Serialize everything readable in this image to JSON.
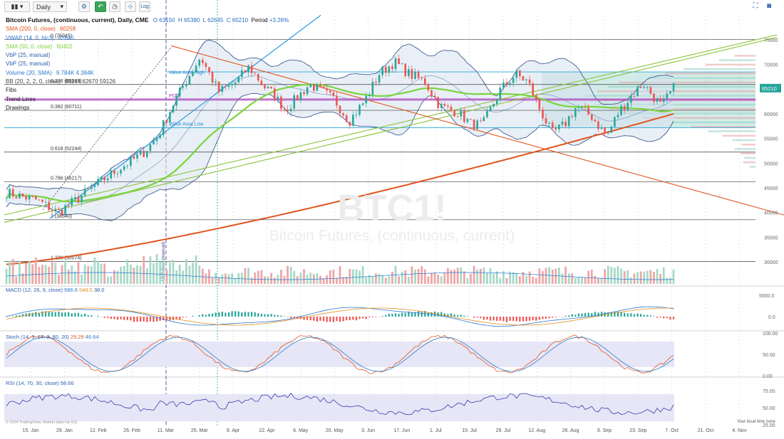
{
  "toolbar": {
    "chart_type_icon": "candles-icon",
    "interval": "Daily",
    "settings_icon": "gear-icon",
    "replay_icon": "back-arrow-icon",
    "clock_icon": "clock-icon",
    "draw_icon": "crosshair-icon",
    "log_label": "Log",
    "fullscreen_icon": "fullscreen-icon",
    "snapshot_icon": "camera-icon"
  },
  "header": {
    "title": "Bitcoin Futures, (continuous, current), Daily, CME",
    "o_label": "O",
    "o": "63150",
    "h_label": "H",
    "h": "65380",
    "l_label": "L",
    "l": "62645",
    "c_label": "C",
    "c": "65210",
    "period_label": "Period",
    "period": "+3.26%"
  },
  "legend": [
    {
      "text": "SMA (200, 0, close)",
      "value": "60258",
      "color": "#e0541d"
    },
    {
      "text": "VWAP (14, 0, hlc3)",
      "value": "62645",
      "color": "#2b7ad0"
    },
    {
      "text": "SMA (50, 0, close)",
      "value": "60402",
      "color": "#7ad43b"
    },
    {
      "text": "VbP (25, manual)",
      "value": "",
      "color": "#2b5fb0"
    },
    {
      "text": "VbP (25, manual)",
      "value": "",
      "color": "#2b5fb0"
    },
    {
      "text": "Volume (20, SMA)",
      "value": "9.784K  4.384K",
      "color": "#2b7ad0"
    },
    {
      "text": "BB (20, 2, 2, 0, close)",
      "value": "66214  62670  59126",
      "color": "#444"
    },
    {
      "text": "Fibs",
      "value": "",
      "color": "#222"
    },
    {
      "text": "Trend Lines",
      "value": "",
      "color": "#222"
    },
    {
      "text": "Drawings",
      "value": "",
      "color": "#222"
    }
  ],
  "watermark": {
    "symbol": "BTC1!",
    "name": "Bitcoin Futures, (continuous, current)"
  },
  "price_axis": [
    "75000",
    "70000",
    "65000",
    "60000",
    "55000",
    "50000",
    "45000",
    "40000",
    "35000",
    "30000"
  ],
  "last_price": "65210",
  "fib_labels": [
    {
      "label": "0 (75045)",
      "value": 75045
    },
    {
      "label": "0.236 (65949)",
      "value": 65949
    },
    {
      "label": "0.382 (60711)",
      "value": 60711
    },
    {
      "label": "0.618 (52244)",
      "value": 52244
    },
    {
      "label": "0.786 (46217)",
      "value": 46217
    },
    {
      "label": "1 (38540)",
      "value": 38540
    },
    {
      "label": "1.236 (30074)",
      "value": 30074
    }
  ],
  "annotations": {
    "value_area_high": "Value Area High",
    "value_area_low": "Value Area Low",
    "poc": "POC",
    "vbp_start": "VbP Start (manual)"
  },
  "macd": {
    "label": "MACD (12, 26, 9, close)",
    "v1": "586.6",
    "v2": "548.5",
    "v3": "38.0",
    "axis": [
      "5000.0",
      "0.0"
    ]
  },
  "stoch": {
    "label": "Stoch (14, 3, 14, 3, 80, 20)",
    "v1": "29.29",
    "v2": "46.64",
    "axis": [
      "100.00",
      "50.00",
      "0.00"
    ]
  },
  "rsi": {
    "label": "RSI (14, 70, 30, close)",
    "v1": "58.66",
    "axis": [
      "75.00",
      "50.00",
      "25.00"
    ]
  },
  "time_axis": [
    "15. Jan",
    "29. Jan",
    "12. Feb",
    "26. Feb",
    "11. Mar",
    "25. Mar",
    "8. Apr",
    "22. Apr",
    "6. May",
    "20. May",
    "3. Jun",
    "17. Jun",
    "1. Jul",
    "15. Jul",
    "29. Jul",
    "12. Aug",
    "26. Aug",
    "9. Sep",
    "23. Sep",
    "7. Oct",
    "21. Oct",
    "4. Nov"
  ],
  "footer": {
    "copyright": "© 2024 TradingView, Market data via ICE",
    "tz": "Your local time zone"
  },
  "colors": {
    "up": "#26a69a",
    "down": "#ef5350",
    "sma200": "#e0541d",
    "sma50": "#7ad43b",
    "vwap": "#2b7ad0",
    "bb": "#2b4a86"
  }
}
